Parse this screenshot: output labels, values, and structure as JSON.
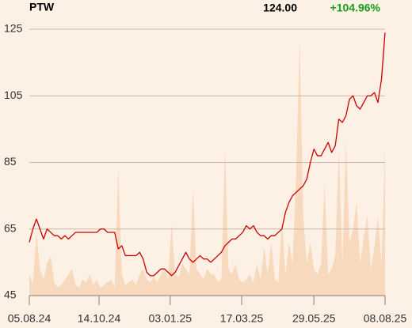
{
  "chart_data": {
    "type": "line",
    "title": "PTW",
    "price": "124.00",
    "change": "+104.96%",
    "change_color": "#1a9e1a",
    "series": [
      {
        "color": "#cc0000",
        "values": [
          61,
          65,
          68,
          65,
          62,
          65,
          64,
          63,
          63,
          62,
          63,
          62,
          63,
          64,
          64,
          64,
          64,
          64,
          64,
          64,
          65,
          65,
          64,
          64,
          64,
          59,
          60,
          57,
          57,
          57,
          57,
          58,
          56,
          52,
          51,
          51,
          52,
          53,
          53,
          52,
          51,
          52,
          54,
          56,
          58,
          56,
          55,
          56,
          57,
          56,
          56,
          55,
          56,
          57,
          58,
          60,
          61,
          62,
          62,
          63,
          64,
          66,
          65,
          66,
          64,
          63,
          63,
          62,
          63,
          63,
          64,
          65,
          70,
          73,
          75,
          76,
          77,
          78,
          80,
          85,
          89,
          87,
          87,
          89,
          91,
          88,
          90,
          98,
          97,
          99,
          104,
          105,
          102,
          101,
          103,
          105,
          105,
          106,
          103,
          110,
          124
        ]
      }
    ],
    "volume": {
      "color": "#f7d9bd",
      "ylim": [
        0,
        100
      ],
      "values": [
        8,
        4,
        24,
        10,
        6,
        12,
        15,
        5,
        3,
        4,
        6,
        8,
        10,
        4,
        3,
        6,
        5,
        8,
        4,
        6,
        3,
        4,
        5,
        6,
        3,
        48,
        8,
        4,
        5,
        6,
        4,
        8,
        10,
        6,
        5,
        7,
        5,
        8,
        10,
        6,
        27,
        8,
        7,
        12,
        10,
        8,
        40,
        10,
        8,
        6,
        10,
        8,
        8,
        5,
        6,
        55,
        10,
        8,
        12,
        6,
        5,
        6,
        8,
        5,
        12,
        6,
        18,
        8,
        20,
        6,
        5,
        28,
        8,
        20,
        12,
        45,
        96,
        30,
        12,
        20,
        10,
        8,
        12,
        42,
        8,
        10,
        15,
        55,
        12,
        58,
        20,
        25,
        35,
        12,
        22,
        30,
        10,
        18,
        30,
        12,
        55
      ]
    },
    "xlim": [
      0,
      100
    ],
    "xticks": [
      {
        "value": 0,
        "label": "05.08.24"
      },
      {
        "value": 19.6,
        "label": "14.10.24"
      },
      {
        "value": 39.6,
        "label": "03.01.25"
      },
      {
        "value": 59.7,
        "label": "17.03.25"
      },
      {
        "value": 80,
        "label": "29.05.25"
      },
      {
        "value": 100,
        "label": "08.08.25"
      }
    ],
    "ylim": [
      45,
      125
    ],
    "yticks": [
      45,
      65,
      85,
      105,
      125
    ],
    "grid": true
  }
}
